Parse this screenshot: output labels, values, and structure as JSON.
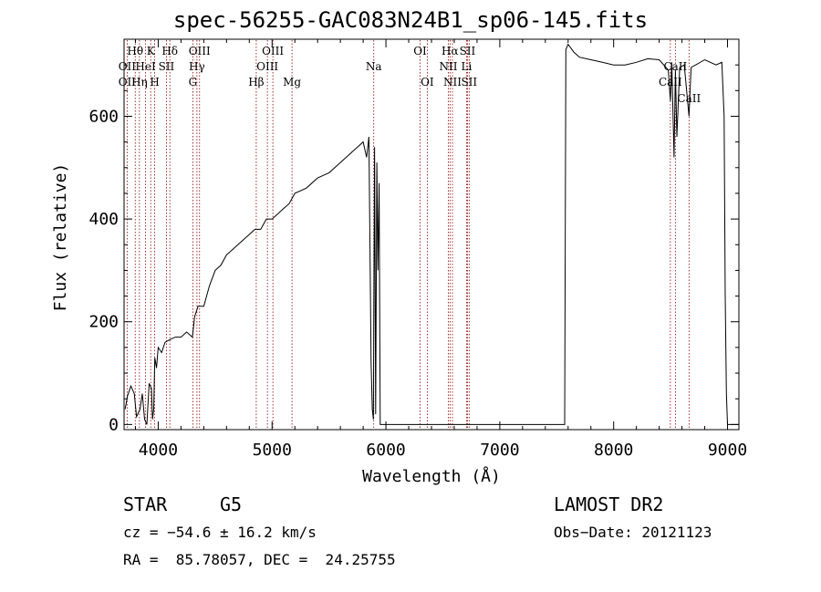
{
  "title": "spec-56255-GAC083N24B1_sp06-145.fits",
  "chart_data": {
    "type": "line",
    "xlabel": "Wavelength (Å)",
    "ylabel": "Flux (relative)",
    "xlim": [
      3700,
      9100
    ],
    "ylim": [
      -10,
      750
    ],
    "x_ticks": [
      4000,
      5000,
      6000,
      7000,
      8000,
      9000
    ],
    "y_ticks": [
      0,
      200,
      400,
      600
    ],
    "grid": false,
    "spectral_lines": [
      {
        "label": "Hθ",
        "wavelength": 3798,
        "row": 0
      },
      {
        "label": "OII",
        "wavelength": 3727,
        "row": 1
      },
      {
        "label": "OII",
        "wavelength": 3727,
        "row": 2
      },
      {
        "label": "Hη",
        "wavelength": 3835,
        "row": 2
      },
      {
        "label": "HeI",
        "wavelength": 3889,
        "row": 1
      },
      {
        "label": "K",
        "wavelength": 3934,
        "row": 0
      },
      {
        "label": "H",
        "wavelength": 3969,
        "row": 2
      },
      {
        "label": "SII",
        "wavelength": 4072,
        "row": 1
      },
      {
        "label": "Hδ",
        "wavelength": 4102,
        "row": 0
      },
      {
        "label": "OIII",
        "wavelength": 4363,
        "row": 0
      },
      {
        "label": "Hγ",
        "wavelength": 4340,
        "row": 1
      },
      {
        "label": "G",
        "wavelength": 4304,
        "row": 2
      },
      {
        "label": "Hβ",
        "wavelength": 4861,
        "row": 2
      },
      {
        "label": "OIII",
        "wavelength": 5007,
        "row": 0
      },
      {
        "label": "OIII",
        "wavelength": 4959,
        "row": 1
      },
      {
        "label": "Mg",
        "wavelength": 5175,
        "row": 2
      },
      {
        "label": "Na",
        "wavelength": 5893,
        "row": 1
      },
      {
        "label": "OI",
        "wavelength": 6300,
        "row": 0
      },
      {
        "label": "OI",
        "wavelength": 6363,
        "row": 2
      },
      {
        "label": "Hα",
        "wavelength": 6563,
        "row": 0
      },
      {
        "label": "NII",
        "wavelength": 6548,
        "row": 1
      },
      {
        "label": "NII",
        "wavelength": 6584,
        "row": 2
      },
      {
        "label": "SII",
        "wavelength": 6716,
        "row": 0
      },
      {
        "label": "Li",
        "wavelength": 6708,
        "row": 1
      },
      {
        "label": "SII",
        "wavelength": 6731,
        "row": 2
      },
      {
        "label": "CaII",
        "wavelength": 8542,
        "row": 1
      },
      {
        "label": "CaII",
        "wavelength": 8498,
        "row": 2
      },
      {
        "label": "CaII",
        "wavelength": 8662,
        "row": 3
      }
    ],
    "series": [
      {
        "x": [
          3710,
          3730,
          3760,
          3790,
          3810,
          3840,
          3860,
          3880,
          3900,
          3920,
          3940,
          3950,
          3960,
          3970,
          3985,
          4000,
          4030,
          4060,
          4100,
          4150,
          4200,
          4250,
          4300,
          4320,
          4350,
          4400,
          4450,
          4500,
          4550,
          4600,
          4700,
          4800,
          4850,
          4900,
          4950,
          5000,
          5050,
          5100,
          5150,
          5200,
          5300,
          5400,
          5500,
          5600,
          5700,
          5750,
          5800,
          5830,
          5850,
          5870,
          5880,
          5890,
          5900,
          5910,
          5920,
          5930,
          5940,
          5950,
          5970,
          6000,
          6500,
          7000,
          7500,
          7550,
          7570,
          7580,
          7600,
          7650,
          7700,
          7800,
          7900,
          8000,
          8100,
          8200,
          8300,
          8400,
          8480,
          8498,
          8510,
          8530,
          8542,
          8555,
          8580,
          8620,
          8662,
          8680,
          8720,
          8800,
          8900,
          8950,
          8970,
          8980,
          8990,
          9000,
          9010,
          9050,
          9100
        ],
        "y": [
          30,
          55,
          75,
          60,
          15,
          30,
          60,
          10,
          0,
          80,
          70,
          10,
          30,
          130,
          110,
          150,
          140,
          160,
          165,
          170,
          170,
          180,
          170,
          210,
          230,
          230,
          270,
          300,
          310,
          330,
          350,
          370,
          380,
          380,
          400,
          400,
          410,
          420,
          430,
          450,
          460,
          480,
          490,
          510,
          530,
          540,
          550,
          520,
          560,
          120,
          30,
          10,
          540,
          20,
          510,
          300,
          470,
          0,
          0,
          0,
          0,
          0,
          0,
          0,
          0,
          730,
          740,
          725,
          715,
          710,
          705,
          700,
          700,
          705,
          712,
          710,
          690,
          630,
          705,
          520,
          690,
          560,
          695,
          700,
          600,
          695,
          700,
          710,
          700,
          705,
          600,
          250,
          60,
          0,
          0,
          0,
          0
        ]
      }
    ]
  },
  "info": {
    "object_class": "STAR",
    "subclass": "G5",
    "survey": "LAMOST DR2",
    "cz": "cz = −54.6 ± 16.2 km/s",
    "obs_date": "Obs−Date: 20121123",
    "coords": "RA =  85.78057, DEC =  24.25755"
  }
}
